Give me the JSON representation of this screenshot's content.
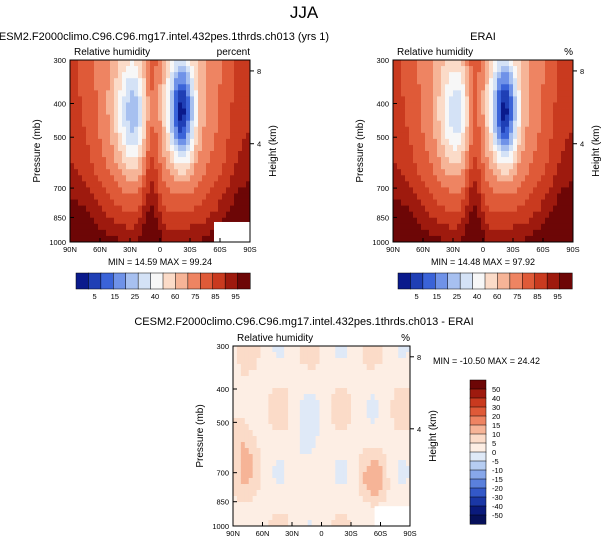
{
  "page": {
    "title": "JJA"
  },
  "chart_data": [
    {
      "type": "heatmap",
      "title": "CESM2.F2000climo.C96.C96.mg17.intel.432pes.1thrds.ch013 (yrs 1)",
      "variable": "Relative humidity",
      "units": "percent",
      "xlabel": "",
      "ylabel": "Pressure (mb)",
      "y2label": "Height (km)",
      "x_ticks": [
        "90N",
        "60N",
        "30N",
        "0",
        "30S",
        "60S",
        "90S"
      ],
      "y_ticks": [
        "300",
        "400",
        "500",
        "700",
        "850",
        "1000"
      ],
      "y2_ticks": [
        "8",
        "4"
      ],
      "ylim": [
        1000,
        300
      ],
      "stats": "MIN = 14.59  MAX = 99.24",
      "colorbar": {
        "orientation": "horizontal",
        "levels": [
          "5",
          "15",
          "25",
          "40",
          "60",
          "75",
          "85",
          "95"
        ],
        "colors": [
          "#0a1a8c",
          "#1f3fb5",
          "#3a63d8",
          "#6f92e8",
          "#a7c0f0",
          "#d4e2f6",
          "#f7f7f7",
          "#fbdbc8",
          "#f6b497",
          "#ee8462",
          "#df5a38",
          "#c93a1f",
          "#9e1a0e",
          "#6d0606"
        ]
      }
    },
    {
      "type": "heatmap",
      "title": "ERAI",
      "variable": "Relative humidity",
      "units": "%",
      "xlabel": "",
      "ylabel": "Pressure (mb)",
      "y2label": "Height (km)",
      "x_ticks": [
        "90N",
        "60N",
        "30N",
        "0",
        "30S",
        "60S",
        "90S"
      ],
      "y_ticks": [
        "300",
        "400",
        "500",
        "700",
        "850",
        "1000"
      ],
      "y2_ticks": [
        "8",
        "4"
      ],
      "ylim": [
        1000,
        300
      ],
      "stats": "MIN = 14.48  MAX = 97.92",
      "colorbar": {
        "orientation": "horizontal",
        "levels": [
          "5",
          "15",
          "25",
          "40",
          "60",
          "75",
          "85",
          "95"
        ],
        "colors": [
          "#0a1a8c",
          "#1f3fb5",
          "#3a63d8",
          "#6f92e8",
          "#a7c0f0",
          "#d4e2f6",
          "#f7f7f7",
          "#fbdbc8",
          "#f6b497",
          "#ee8462",
          "#df5a38",
          "#c93a1f",
          "#9e1a0e",
          "#6d0606"
        ]
      }
    },
    {
      "type": "heatmap",
      "title": "CESM2.F2000climo.C96.C96.mg17.intel.432pes.1thrds.ch013 - ERAI",
      "variable": "Relative humidity",
      "units": "%",
      "xlabel": "",
      "ylabel": "Pressure (mb)",
      "y2label": "Height (km)",
      "x_ticks": [
        "90N",
        "60N",
        "30N",
        "0",
        "30S",
        "60S",
        "90S"
      ],
      "y_ticks": [
        "300",
        "400",
        "500",
        "700",
        "850",
        "1000"
      ],
      "y2_ticks": [
        "8",
        "4"
      ],
      "ylim": [
        1000,
        300
      ],
      "stats": "MIN = -10.50  MAX =  24.42",
      "colorbar": {
        "orientation": "vertical",
        "levels": [
          "50",
          "40",
          "30",
          "20",
          "15",
          "10",
          "5",
          "0",
          "-5",
          "-10",
          "-15",
          "-20",
          "-30",
          "-40",
          "-50"
        ],
        "colors": [
          "#6d0606",
          "#9e1a0e",
          "#c93a1f",
          "#df5a38",
          "#ee8462",
          "#f6b497",
          "#fbdbc8",
          "#fdeee4",
          "#dfe9f7",
          "#b6cdf2",
          "#87a7ea",
          "#5a80dc",
          "#3358c8",
          "#1a37a6",
          "#0a1a7c",
          "#06105a"
        ]
      }
    }
  ]
}
